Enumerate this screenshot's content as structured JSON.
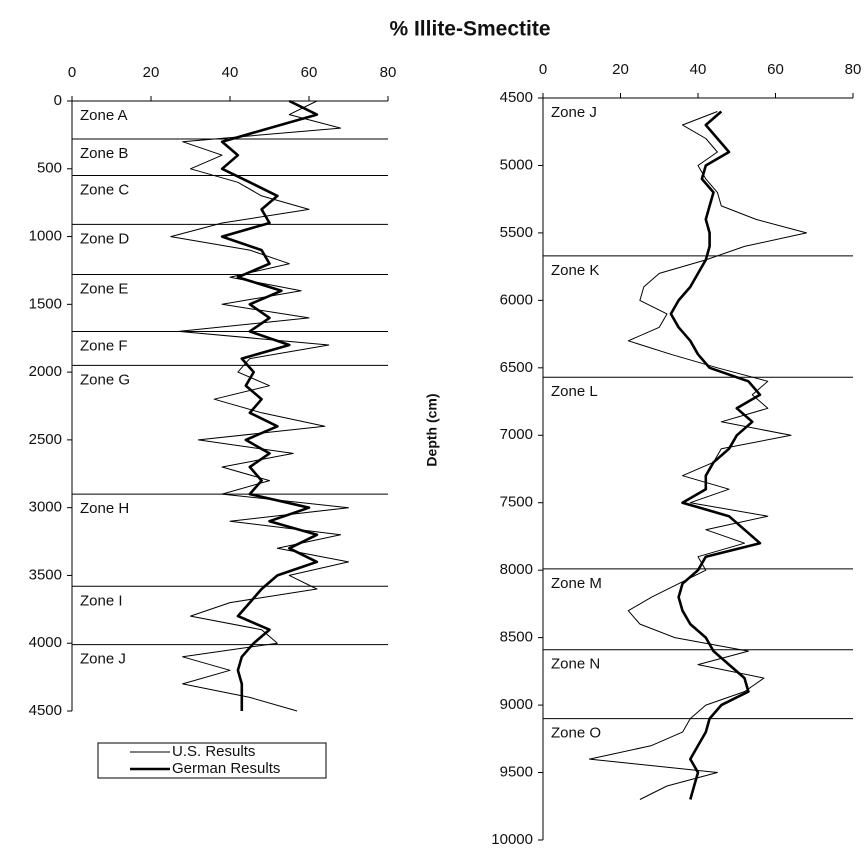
{
  "chart_data": [
    {
      "type": "line",
      "title": "% Illite-Smectite",
      "xlim": [
        0,
        80
      ],
      "xticks": [
        0,
        20,
        40,
        60,
        80
      ],
      "ylim": [
        0,
        4500
      ],
      "yticks": [
        0,
        500,
        1000,
        1500,
        2000,
        2500,
        3000,
        3500,
        4000,
        4500
      ],
      "y_inverted": true,
      "legend": "bottom",
      "depth": [
        0,
        100,
        200,
        300,
        400,
        500,
        600,
        700,
        800,
        900,
        1000,
        1100,
        1200,
        1300,
        1400,
        1500,
        1600,
        1700,
        1800,
        1900,
        2000,
        2100,
        2200,
        2300,
        2400,
        2500,
        2600,
        2700,
        2800,
        2900,
        3000,
        3100,
        3200,
        3300,
        3400,
        3500,
        3600,
        3700,
        3800,
        3900,
        4000,
        4100,
        4200,
        4300,
        4400,
        4500
      ],
      "series": [
        {
          "name": "U.S. Results",
          "color": "#000",
          "width": 1,
          "values": [
            62,
            55,
            68,
            28,
            38,
            30,
            42,
            48,
            60,
            38,
            25,
            45,
            55,
            40,
            58,
            38,
            60,
            27,
            65,
            45,
            42,
            50,
            36,
            48,
            64,
            32,
            56,
            38,
            50,
            38,
            70,
            40,
            68,
            52,
            70,
            55,
            62,
            40,
            30,
            48,
            52,
            28,
            40,
            28,
            45,
            57
          ]
        },
        {
          "name": "German Results",
          "color": "#000",
          "width": 2.6,
          "values": [
            55,
            62,
            50,
            38,
            42,
            38,
            45,
            52,
            48,
            50,
            38,
            48,
            50,
            42,
            53,
            45,
            50,
            45,
            55,
            43,
            46,
            44,
            48,
            45,
            52,
            44,
            50,
            45,
            48,
            45,
            60,
            50,
            62,
            55,
            62,
            52,
            48,
            45,
            42,
            50,
            46,
            43,
            42,
            43,
            43,
            43
          ]
        }
      ],
      "zones": [
        {
          "label": "Zone A",
          "start": 0
        },
        {
          "label": "Zone B",
          "start": 280
        },
        {
          "label": "Zone C",
          "start": 550
        },
        {
          "label": "Zone D",
          "start": 910
        },
        {
          "label": "Zone E",
          "start": 1280
        },
        {
          "label": "Zone F",
          "start": 1700
        },
        {
          "label": "Zone G",
          "start": 1950
        },
        {
          "label": "Zone H",
          "start": 2900
        },
        {
          "label": "Zone I",
          "start": 3580
        },
        {
          "label": "Zone J",
          "start": 4010
        }
      ]
    },
    {
      "type": "line",
      "ylabel": "Depth (cm)",
      "xlim": [
        0,
        80
      ],
      "xticks": [
        0,
        20,
        40,
        60,
        80
      ],
      "ylim": [
        4500,
        10000
      ],
      "yticks": [
        4500,
        5000,
        5500,
        6000,
        6500,
        7000,
        7500,
        8000,
        8500,
        9000,
        9500,
        10000
      ],
      "y_inverted": true,
      "depth": [
        4600,
        4700,
        4800,
        4900,
        5000,
        5100,
        5200,
        5300,
        5400,
        5500,
        5600,
        5700,
        5800,
        5900,
        6000,
        6100,
        6200,
        6300,
        6400,
        6500,
        6600,
        6700,
        6800,
        6900,
        7000,
        7100,
        7200,
        7300,
        7400,
        7500,
        7600,
        7700,
        7800,
        7900,
        8000,
        8100,
        8200,
        8300,
        8400,
        8500,
        8600,
        8700,
        8800,
        8900,
        9000,
        9100,
        9200,
        9300,
        9400,
        9500,
        9600,
        9700
      ],
      "series": [
        {
          "color": "#000",
          "width": 1,
          "values": [
            45,
            36,
            42,
            45,
            40,
            42,
            45,
            46,
            55,
            68,
            52,
            42,
            30,
            26,
            25,
            32,
            30,
            22,
            33,
            45,
            58,
            54,
            58,
            46,
            64,
            46,
            44,
            36,
            48,
            38,
            58,
            42,
            52,
            40,
            42,
            35,
            28,
            22,
            25,
            34,
            53,
            40,
            57,
            52,
            42,
            38,
            36,
            28,
            12,
            45,
            32,
            25
          ]
        },
        {
          "color": "#000",
          "width": 2.6,
          "values": [
            46,
            42,
            45,
            48,
            42,
            41,
            44,
            43,
            42,
            43,
            43,
            42,
            40,
            38,
            35,
            33,
            35,
            38,
            40,
            43,
            53,
            56,
            50,
            54,
            50,
            48,
            44,
            42,
            42,
            36,
            48,
            52,
            56,
            42,
            40,
            36,
            35,
            36,
            38,
            42,
            44,
            48,
            52,
            53,
            46,
            43,
            42,
            40,
            38,
            40,
            39,
            38
          ]
        }
      ],
      "zones": [
        {
          "label": "Zone J",
          "start": 4500
        },
        {
          "label": "Zone K",
          "start": 5670
        },
        {
          "label": "Zone L",
          "start": 6570
        },
        {
          "label": "Zone M",
          "start": 7990
        },
        {
          "label": "Zone N",
          "start": 8590
        },
        {
          "label": "Zone O",
          "start": 9100
        }
      ]
    }
  ]
}
